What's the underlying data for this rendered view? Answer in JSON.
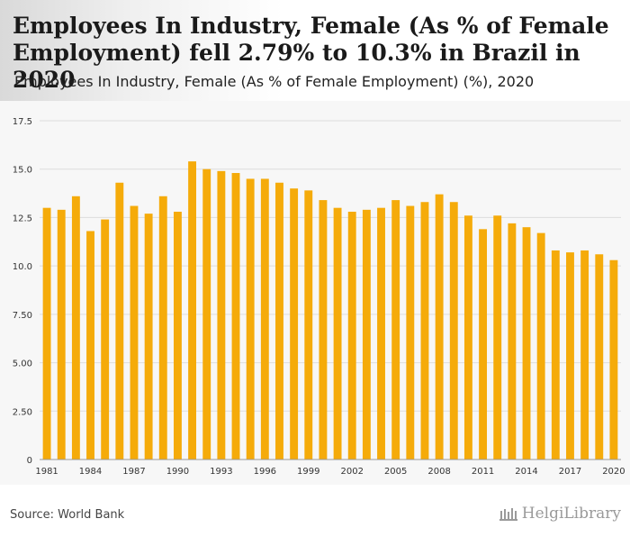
{
  "header": {
    "title": "Employees In Industry, Female (As % of Female Employment) fell 2.79% to 10.3% in Brazil in 2020",
    "subtitle": "Employees In Industry, Female (As % of Female Employment) (%), 2020"
  },
  "footer": {
    "source": "Source: World Bank",
    "brand": "HelgiLibrary"
  },
  "colors": {
    "bar": "#f5ab0a",
    "grid": "#dddddd",
    "axis_text": "#333333"
  },
  "chart_data": {
    "type": "bar",
    "title": "Employees In Industry, Female (As % of Female Employment) (%), 2020",
    "xlabel": "",
    "ylabel": "",
    "ylim": [
      0,
      17.5
    ],
    "yticks": [
      0,
      2.5,
      5.0,
      7.5,
      10.0,
      12.5,
      15.0,
      17.5
    ],
    "ytick_labels": [
      "0",
      "2.50",
      "5.00",
      "7.50",
      "10.0",
      "12.5",
      "15.0",
      "17.5"
    ],
    "grid": true,
    "categories": [
      "1981",
      "1982",
      "1983",
      "1984",
      "1985",
      "1986",
      "1987",
      "1988",
      "1989",
      "1990",
      "1991",
      "1992",
      "1993",
      "1994",
      "1995",
      "1996",
      "1997",
      "1998",
      "1999",
      "2000",
      "2001",
      "2002",
      "2003",
      "2004",
      "2005",
      "2006",
      "2007",
      "2008",
      "2009",
      "2010",
      "2011",
      "2012",
      "2013",
      "2014",
      "2015",
      "2016",
      "2017",
      "2018",
      "2019",
      "2020"
    ],
    "xtick_labels": [
      "1981",
      "1984",
      "1987",
      "1990",
      "1993",
      "1996",
      "1999",
      "2002",
      "2005",
      "2008",
      "2011",
      "2014",
      "2017",
      "2020"
    ],
    "values": [
      13.0,
      12.9,
      13.6,
      11.8,
      12.4,
      14.3,
      13.1,
      12.7,
      13.6,
      12.8,
      15.4,
      15.0,
      14.9,
      14.8,
      14.5,
      14.5,
      14.3,
      14.0,
      13.9,
      13.4,
      13.0,
      12.8,
      12.9,
      13.0,
      13.4,
      13.1,
      13.3,
      13.7,
      13.3,
      12.6,
      11.9,
      12.6,
      12.2,
      12.0,
      11.7,
      10.8,
      10.7,
      10.8,
      10.6,
      10.3
    ]
  }
}
